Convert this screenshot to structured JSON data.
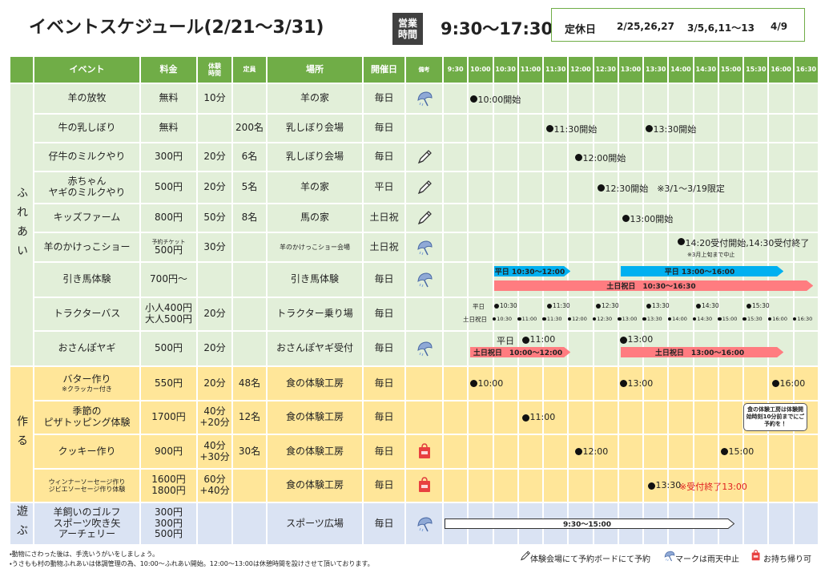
{
  "header": {
    "title": "イベントスケジュール(2/21～3/31)",
    "hours_label": [
      "営業",
      "時間"
    ],
    "hours": "9:30～17:30",
    "closed_label": "定休日",
    "closed_dates": [
      "2/25,26,27",
      "3/5,6,11～13",
      "4/9"
    ]
  },
  "table": {
    "columns": [
      [
        "イベント"
      ],
      [
        "料金"
      ],
      [
        "体験",
        "時間"
      ],
      [
        "定員"
      ],
      [
        "場所"
      ],
      [
        "開催日"
      ],
      [
        "備考"
      ]
    ],
    "times": [
      "9:30",
      "10:00",
      "10:30",
      "11:00",
      "11:30",
      "12:00",
      "12:30",
      "13:00",
      "13:30",
      "14:00",
      "14:30",
      "15:00",
      "15:30",
      "16:00",
      "16:30"
    ],
    "sections": [
      {
        "label": "ふれあい",
        "rows": [
          {
            "event": "羊の放牧",
            "fee": "無料",
            "duration": "10分",
            "place": "羊の家",
            "days": "毎日",
            "schedule": [
              "10:00開始"
            ]
          },
          {
            "event": "牛の乳しぼり",
            "fee": "無料",
            "capacity": "200名",
            "place": "乳しぼり会場",
            "days": "毎日",
            "schedule": [
              "11:30開始",
              "13:30開始"
            ]
          },
          {
            "event": "仔牛のミルクやり",
            "fee": "300円",
            "duration": "20分",
            "capacity": "6名",
            "place": "乳しぼり会場",
            "days": "毎日",
            "schedule": [
              "12:00開始"
            ]
          },
          {
            "event": [
              "赤ちゃん",
              "ヤギのミルクやり"
            ],
            "fee": "500円",
            "duration": "20分",
            "capacity": "5名",
            "place": "羊の家",
            "days": "平日",
            "schedule": [
              "12:30開始　※3/1～3/19限定"
            ]
          },
          {
            "event": "キッズファーム",
            "fee": "800円",
            "duration": "50分",
            "capacity": "8名",
            "place": "馬の家",
            "days": "土日祝",
            "schedule": [
              "13:00開始"
            ]
          },
          {
            "event": "羊のかけっこショー",
            "fee": [
              "予約チケット",
              "500円"
            ],
            "duration": "30分",
            "place": "羊のかけっこショー会場",
            "days": "土日祝",
            "schedule": [
              "14:20受付開始,14:30受付終了"
            ],
            "remark": "※3月上旬まで中止"
          },
          {
            "event": "引き馬体験",
            "fee": "700円～",
            "place": "引き馬体験",
            "days": "毎日",
            "bars": [
              "平日 10:30～12:00",
              "平日 13:00～16:00",
              "土日祝日　10:30～16:30"
            ]
          },
          {
            "event": "トラクターバス",
            "fee": [
              "小人400円",
              "大人500円"
            ],
            "duration": "20分",
            "place": "トラクター乗り場",
            "days": "毎日",
            "timetable": [
              {
                "label": "平日",
                "times": [
                  "10:30",
                  "11:30",
                  "12:30",
                  "13:30",
                  "14:30",
                  "15:30"
                ]
              },
              {
                "label": "土日祝日",
                "times": [
                  "10:30",
                  "11:00",
                  "11:30",
                  "12:00",
                  "12:30",
                  "13:00",
                  "13:30",
                  "14:00",
                  "14:30",
                  "15:00",
                  "15:30",
                  "16:00",
                  "16:30"
                ]
              }
            ]
          },
          {
            "event": "おさんぽヤギ",
            "fee": "500円",
            "duration": "20分",
            "place": "おさんぽヤギ受付",
            "days": "毎日",
            "weekday_label": "平日",
            "schedule": [
              "11:00",
              "13:00"
            ],
            "bars": [
              "土日祝日　10:00～12:00",
              "土日祝日　13:00～16:00"
            ]
          }
        ]
      },
      {
        "label": "作る",
        "rows": [
          {
            "event": [
              "バター作り",
              "※クラッカー付き"
            ],
            "fee": "550円",
            "duration": "20分",
            "capacity": "48名",
            "place": "食の体験工房",
            "days": "毎日",
            "schedule": [
              "10:00",
              "13:00",
              "16:00"
            ]
          },
          {
            "event": [
              "季節の",
              "ピザトッピング体験"
            ],
            "fee": "1700円",
            "duration": [
              "40分",
              "+20分"
            ],
            "capacity": "12名",
            "place": "食の体験工房",
            "days": "毎日",
            "schedule": [
              "11:00"
            ],
            "remark": "食の体験工房は体験開始時刻10分前までにご予約を！"
          },
          {
            "event": "クッキー作り",
            "fee": "900円",
            "duration": [
              "40分",
              "+30分"
            ],
            "capacity": "30名",
            "place": "食の体験工房",
            "days": "毎日",
            "schedule": [
              "12:00",
              "15:00"
            ]
          },
          {
            "event": [
              "ウィンナーソーセージ作り",
              "ジビエソーセージ作り体験"
            ],
            "fee": [
              "1600円",
              "1800円"
            ],
            "duration": [
              "60分",
              "+40分"
            ],
            "place": "食の体験工房",
            "days": "毎日",
            "schedule": [
              "13:30"
            ],
            "remark": "※受付終了13:00"
          }
        ]
      },
      {
        "label": "遊ぶ",
        "rows": [
          {
            "event": [
              "羊飼いのゴルフ",
              "スポーツ吹き矢",
              "アーチェリー"
            ],
            "fee": [
              "300円",
              "300円",
              "500円"
            ],
            "place": "スポーツ広場",
            "days": "毎日",
            "bars": [
              "9:30～15:00"
            ]
          }
        ]
      }
    ]
  },
  "footer": {
    "notes": [
      "・動物にさわった後は、手洗いうがいをしましょう。",
      "・うさもも村の動物ふれあいは体調管理の為、10:00～ふれあい開始。12:00～13:00は休憩時間を設けさせて頂いております。"
    ],
    "legend": [
      "体験会場にて予約ボードにて予約",
      "マークは雨天中止",
      "お持ち帰り可"
    ]
  }
}
